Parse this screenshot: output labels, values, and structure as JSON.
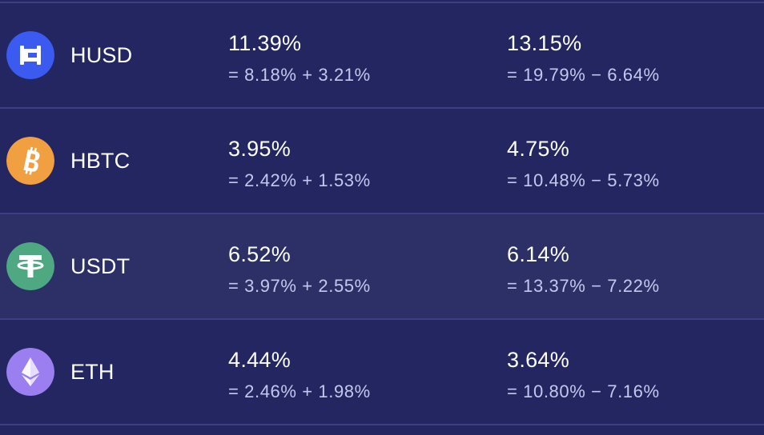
{
  "rows": [
    {
      "symbol": "HUSD",
      "icon": "husd-icon",
      "icon_color": "#3b5bf0",
      "rate1": "11.39%",
      "rate1_formula": "= 8.18% + 3.21%",
      "rate2": "13.15%",
      "rate2_formula": "= 19.79% − 6.64%"
    },
    {
      "symbol": "HBTC",
      "icon": "bitcoin-icon",
      "icon_color": "#f0a040",
      "rate1": "3.95%",
      "rate1_formula": "= 2.42% + 1.53%",
      "rate2": "4.75%",
      "rate2_formula": "= 10.48% − 5.73%"
    },
    {
      "symbol": "USDT",
      "icon": "tether-icon",
      "icon_color": "#4ea882",
      "rate1": "6.52%",
      "rate1_formula": "= 3.97% + 2.55%",
      "rate2": "6.14%",
      "rate2_formula": "= 13.37% − 7.22%"
    },
    {
      "symbol": "ETH",
      "icon": "ethereum-icon",
      "icon_color": "#9b7ff0",
      "rate1": "4.44%",
      "rate1_formula": "= 2.46% + 1.98%",
      "rate2": "3.64%",
      "rate2_formula": "= 10.80% − 7.16%"
    }
  ],
  "colors": {
    "background": "#232660",
    "highlight_row": "#2c3067",
    "divider": "#3b3f86",
    "primary_text": "#ffffff",
    "secondary_text": "#c4c8ee"
  }
}
